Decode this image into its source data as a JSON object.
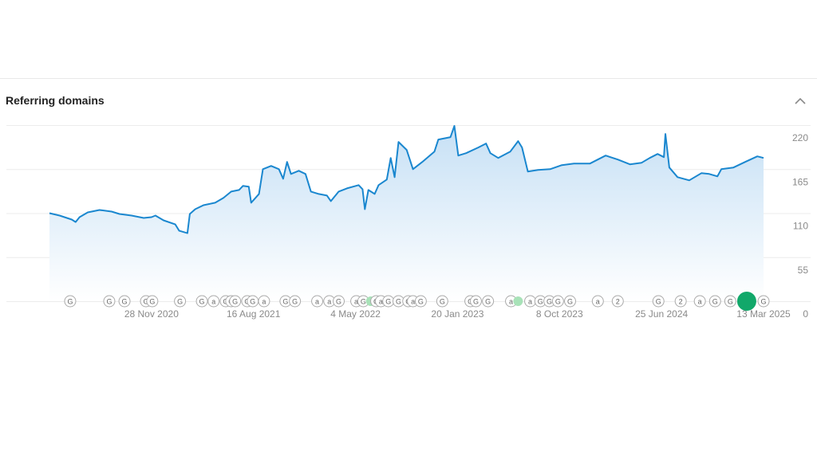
{
  "chart_data": {
    "type": "line",
    "title": "Referring domains",
    "series": [
      {
        "name": "Referring domains",
        "color": "#1a87cf",
        "x": [
          "2020-03-12",
          "2020-04-07",
          "2020-05-08",
          "2020-05-18",
          "2020-05-28",
          "2020-06-18",
          "2020-07-18",
          "2020-08-18",
          "2020-09-07",
          "2020-10-08",
          "2020-11-08",
          "2020-11-28",
          "2020-12-08",
          "2020-12-29",
          "2021-01-28",
          "2021-02-07",
          "2021-02-28",
          "2021-03-06",
          "2021-03-20",
          "2021-04-10",
          "2021-05-10",
          "2021-05-31",
          "2021-06-20",
          "2021-07-10",
          "2021-07-20",
          "2021-08-04",
          "2021-08-10",
          "2021-08-30",
          "2021-09-09",
          "2021-09-30",
          "2021-10-20",
          "2021-10-31",
          "2021-11-10",
          "2021-11-20",
          "2021-12-10",
          "2021-12-27",
          "2022-01-10",
          "2022-01-30",
          "2022-02-20",
          "2022-03-02",
          "2022-03-22",
          "2022-04-12",
          "2022-05-12",
          "2022-05-22",
          "2022-05-28",
          "2022-06-06",
          "2022-06-22",
          "2022-07-02",
          "2022-07-23",
          "2022-08-02",
          "2022-08-12",
          "2022-08-22",
          "2022-09-12",
          "2022-09-28",
          "2022-10-22",
          "2022-11-22",
          "2022-12-02",
          "2023-01-02",
          "2023-01-12",
          "2023-01-22",
          "2023-02-11",
          "2023-03-14",
          "2023-04-03",
          "2023-04-14",
          "2023-05-04",
          "2023-06-04",
          "2023-06-24",
          "2023-07-04",
          "2023-07-19",
          "2023-08-14",
          "2023-09-14",
          "2023-10-14",
          "2023-11-14",
          "2023-12-25",
          "2024-02-03",
          "2024-03-05",
          "2024-04-05",
          "2024-05-05",
          "2024-05-26",
          "2024-06-15",
          "2024-07-01",
          "2024-07-05",
          "2024-07-15",
          "2024-08-05",
          "2024-09-04",
          "2024-10-05",
          "2024-10-25",
          "2024-11-15",
          "2024-11-25",
          "2024-12-26",
          "2025-01-25",
          "2025-02-25",
          "2025-03-13"
        ],
        "values": [
          110,
          107,
          102,
          99,
          105,
          111,
          114,
          112,
          109,
          107,
          104,
          105,
          107,
          101,
          96,
          88,
          85,
          109,
          115,
          120,
          123,
          129,
          137,
          139,
          144,
          143,
          123,
          134,
          165,
          169,
          165,
          153,
          174,
          159,
          163,
          159,
          137,
          134,
          132,
          125,
          137,
          141,
          145,
          140,
          115,
          139,
          134,
          145,
          152,
          179,
          155,
          199,
          189,
          165,
          174,
          187,
          202,
          205,
          219,
          182,
          185,
          192,
          197,
          185,
          179,
          187,
          200,
          192,
          162,
          164,
          165,
          170,
          172,
          172,
          182,
          177,
          171,
          173,
          179,
          184,
          180,
          209,
          167,
          155,
          151,
          160,
          159,
          156,
          165,
          167,
          174,
          181,
          179
        ]
      }
    ],
    "xlim": [
      "2020-03-12",
      "2025-03-13"
    ],
    "xticks": [
      {
        "value": "2020-11-28",
        "label": "28 Nov 2020"
      },
      {
        "value": "2021-08-16",
        "label": "16 Aug 2021"
      },
      {
        "value": "2022-05-04",
        "label": "4 May 2022"
      },
      {
        "value": "2023-01-20",
        "label": "20 Jan 2023"
      },
      {
        "value": "2023-10-08",
        "label": "8 Oct 2023"
      },
      {
        "value": "2024-06-25",
        "label": "25 Jun 2024"
      },
      {
        "value": "2025-03-13",
        "label": "13 Mar 2025"
      }
    ],
    "ylim": [
      0,
      220
    ],
    "yticks": [
      0,
      55,
      110,
      165,
      220
    ],
    "grid": true,
    "event_markers": [
      {
        "date": "2020-05-04",
        "label": "G"
      },
      {
        "date": "2020-08-12",
        "label": "G"
      },
      {
        "date": "2020-09-20",
        "label": "G"
      },
      {
        "date": "2020-11-14",
        "label": "G"
      },
      {
        "date": "2020-11-30",
        "label": "G"
      },
      {
        "date": "2021-02-09",
        "label": "G"
      },
      {
        "date": "2021-04-06",
        "label": "G"
      },
      {
        "date": "2021-05-06",
        "label": "a"
      },
      {
        "date": "2021-06-06",
        "label": "G"
      },
      {
        "date": "2021-06-20",
        "label": "G"
      },
      {
        "date": "2021-06-30",
        "label": "G"
      },
      {
        "date": "2021-07-31",
        "label": "G"
      },
      {
        "date": "2021-08-14",
        "label": "G"
      },
      {
        "date": "2021-09-12",
        "label": "a"
      },
      {
        "date": "2021-11-06",
        "label": "G"
      },
      {
        "date": "2021-11-30",
        "label": "G"
      },
      {
        "date": "2022-01-26",
        "label": "a"
      },
      {
        "date": "2022-02-26",
        "label": "a"
      },
      {
        "date": "2022-03-22",
        "label": "G"
      },
      {
        "date": "2022-05-06",
        "label": "a"
      },
      {
        "date": "2022-05-24",
        "label": "G"
      },
      {
        "date": "2022-06-12",
        "color": "#a8e2b8"
      },
      {
        "date": "2022-06-26",
        "label": "G"
      },
      {
        "date": "2022-07-08",
        "label": "a"
      },
      {
        "date": "2022-07-27",
        "label": "G"
      },
      {
        "date": "2022-08-22",
        "label": "G"
      },
      {
        "date": "2022-09-16",
        "label": "G"
      },
      {
        "date": "2022-09-28",
        "label": "a"
      },
      {
        "date": "2022-10-18",
        "label": "G"
      },
      {
        "date": "2022-12-12",
        "label": "G"
      },
      {
        "date": "2023-02-22",
        "label": "G"
      },
      {
        "date": "2023-03-08",
        "label": "G"
      },
      {
        "date": "2023-04-08",
        "label": "G"
      },
      {
        "date": "2023-06-06",
        "label": "a"
      },
      {
        "date": "2023-06-24",
        "color": "#a8e2b8"
      },
      {
        "date": "2023-07-25",
        "label": "a"
      },
      {
        "date": "2023-08-20",
        "label": "G"
      },
      {
        "date": "2023-09-12",
        "label": "G"
      },
      {
        "date": "2023-10-04",
        "label": "G"
      },
      {
        "date": "2023-11-04",
        "label": "G"
      },
      {
        "date": "2024-01-14",
        "label": "a"
      },
      {
        "date": "2024-03-05",
        "label": "2"
      },
      {
        "date": "2024-06-17",
        "label": "G"
      },
      {
        "date": "2024-08-13",
        "label": "2"
      },
      {
        "date": "2024-10-01",
        "label": "a"
      },
      {
        "date": "2024-11-09",
        "label": "G"
      },
      {
        "date": "2024-12-18",
        "label": "G"
      },
      {
        "date": "2025-01-29",
        "color": "#12a86a",
        "highlight": true
      },
      {
        "date": "2025-03-13",
        "label": "G"
      }
    ]
  }
}
